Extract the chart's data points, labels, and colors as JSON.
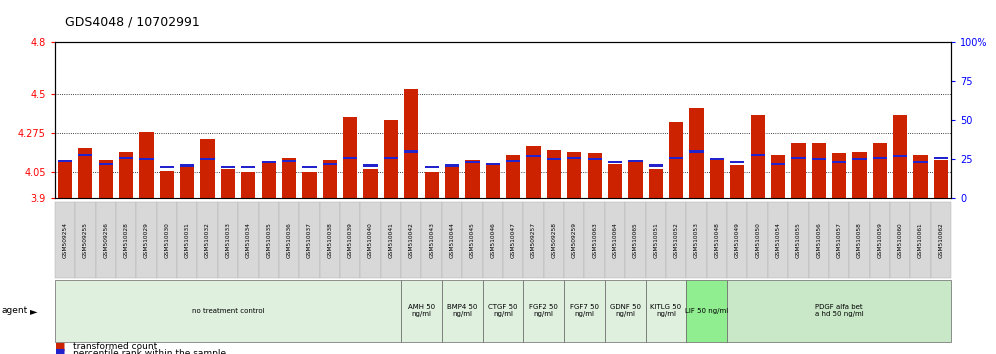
{
  "title": "GDS4048 / 10702991",
  "ylim_left": [
    3.9,
    4.8
  ],
  "ylim_right": [
    0,
    100
  ],
  "yticks_left": [
    3.9,
    4.05,
    4.275,
    4.5,
    4.8
  ],
  "yticks_right": [
    0,
    25,
    50,
    75,
    100
  ],
  "ytick_labels_left": [
    "3.9",
    "4.05",
    "4.275",
    "4.5",
    "4.8"
  ],
  "ytick_labels_right": [
    "0",
    "25",
    "50",
    "75",
    "100%"
  ],
  "grid_values": [
    4.05,
    4.275,
    4.5
  ],
  "bar_color": "#cc2200",
  "blue_color": "#2222cc",
  "samples": [
    "GSM509254",
    "GSM509255",
    "GSM509256",
    "GSM510028",
    "GSM510029",
    "GSM510030",
    "GSM510031",
    "GSM510032",
    "GSM510033",
    "GSM510034",
    "GSM510035",
    "GSM510036",
    "GSM510037",
    "GSM510038",
    "GSM510039",
    "GSM510040",
    "GSM510041",
    "GSM510042",
    "GSM510043",
    "GSM510044",
    "GSM510045",
    "GSM510046",
    "GSM510047",
    "GSM509257",
    "GSM509258",
    "GSM509259",
    "GSM510063",
    "GSM510064",
    "GSM510065",
    "GSM510051",
    "GSM510052",
    "GSM510053",
    "GSM510048",
    "GSM510049",
    "GSM510050",
    "GSM510054",
    "GSM510055",
    "GSM510056",
    "GSM510057",
    "GSM510058",
    "GSM510059",
    "GSM510060",
    "GSM510061",
    "GSM510062"
  ],
  "red_values": [
    4.12,
    4.19,
    4.12,
    4.17,
    4.28,
    4.06,
    4.08,
    4.24,
    4.07,
    4.05,
    4.11,
    4.13,
    4.05,
    4.12,
    4.37,
    4.07,
    4.35,
    4.53,
    4.05,
    4.09,
    4.12,
    4.1,
    4.15,
    4.2,
    4.18,
    4.17,
    4.16,
    4.1,
    4.11,
    4.07,
    4.34,
    4.42,
    4.12,
    4.09,
    4.38,
    4.15,
    4.22,
    4.22,
    4.16,
    4.17,
    4.22,
    4.38,
    4.15,
    4.12
  ],
  "blue_values": [
    24,
    28,
    22,
    26,
    25,
    20,
    21,
    25,
    20,
    20,
    23,
    24,
    20,
    22,
    26,
    21,
    26,
    30,
    20,
    21,
    23,
    22,
    24,
    27,
    25,
    26,
    25,
    23,
    24,
    21,
    26,
    30,
    25,
    23,
    28,
    22,
    26,
    25,
    23,
    25,
    26,
    27,
    23,
    26
  ],
  "groups": [
    [
      0,
      16,
      "no treatment control",
      "#dff0df"
    ],
    [
      17,
      18,
      "AMH 50\nng/ml",
      "#dff0df"
    ],
    [
      19,
      20,
      "BMP4 50\nng/ml",
      "#dff0df"
    ],
    [
      21,
      22,
      "CTGF 50\nng/ml",
      "#dff0df"
    ],
    [
      23,
      24,
      "FGF2 50\nng/ml",
      "#dff0df"
    ],
    [
      25,
      26,
      "FGF7 50\nng/ml",
      "#dff0df"
    ],
    [
      27,
      28,
      "GDNF 50\nng/ml",
      "#dff0df"
    ],
    [
      29,
      30,
      "KITLG 50\nng/ml",
      "#dff0df"
    ],
    [
      31,
      32,
      "LIF 50 ng/ml",
      "#90ee90"
    ],
    [
      33,
      43,
      "PDGF alfa bet\na hd 50 ng/ml",
      "#c8e8c8"
    ]
  ]
}
